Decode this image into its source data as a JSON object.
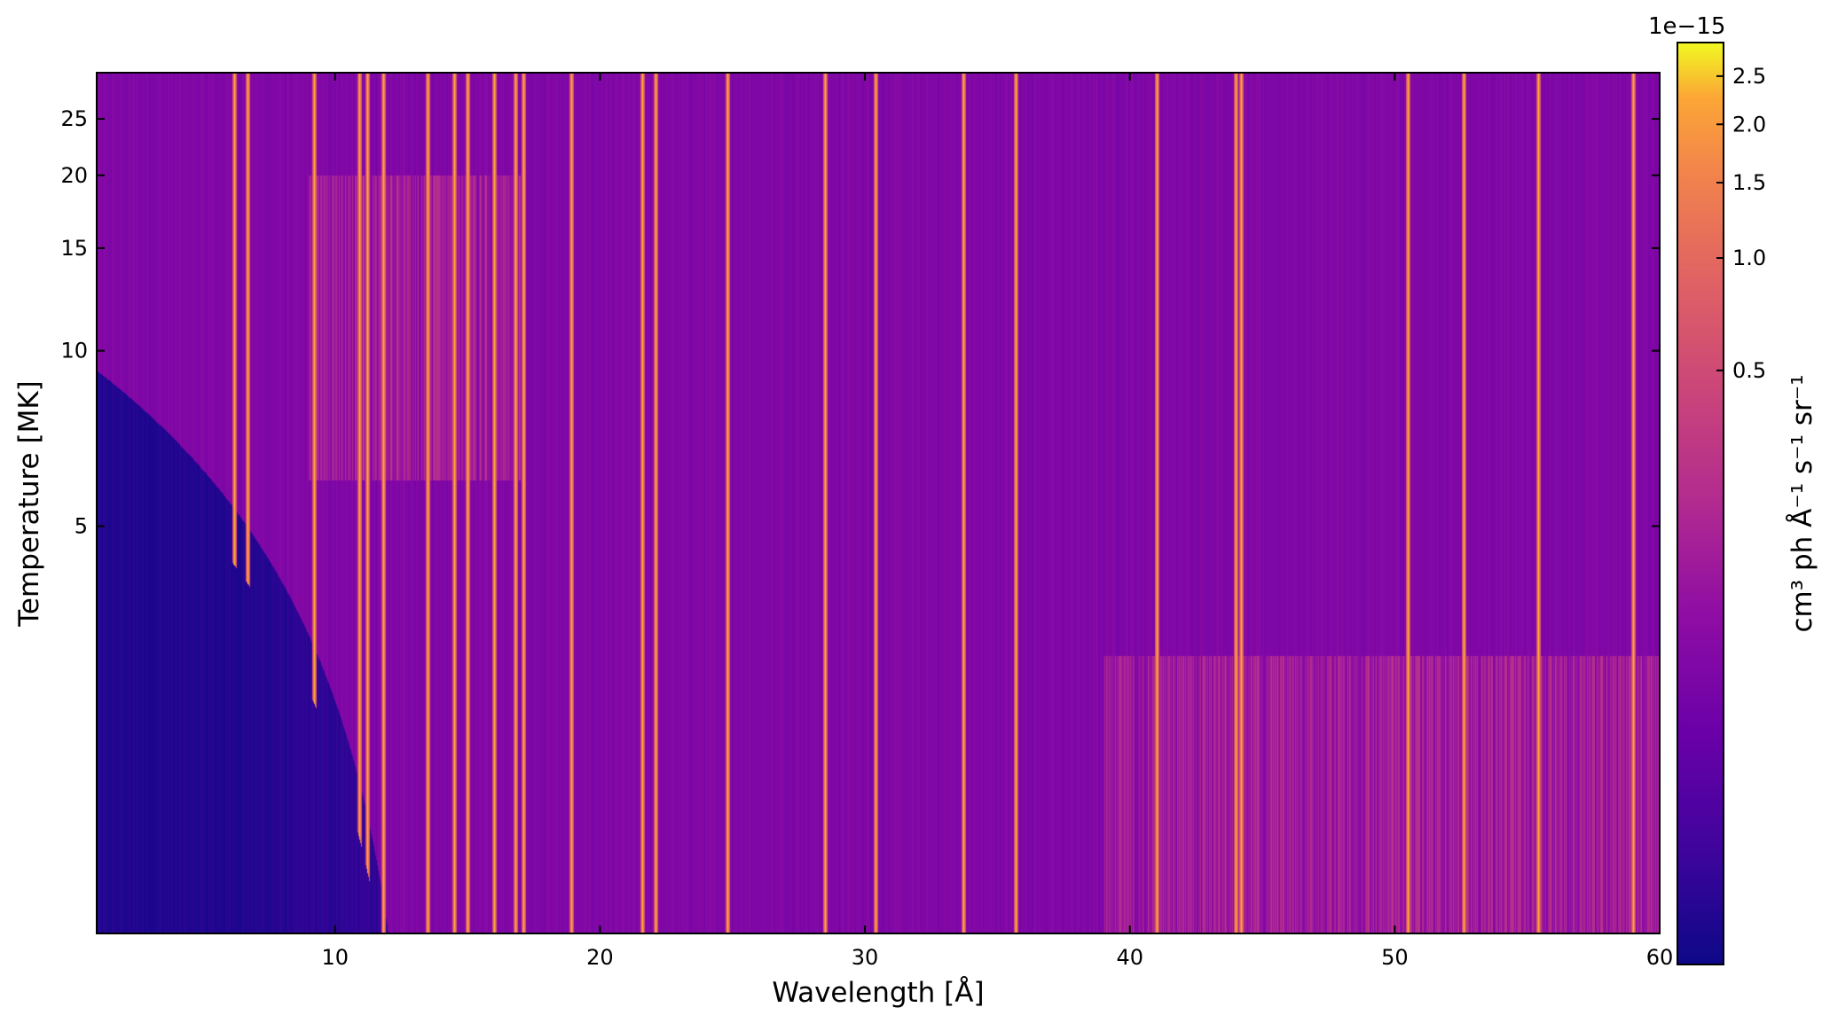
{
  "chart_data": {
    "type": "heatmap",
    "title": "",
    "xlabel": "Wavelength [Å]",
    "ylabel": "Temperature [MK]",
    "xlim": [
      1,
      60
    ],
    "ylim": [
      1,
      30
    ],
    "yscale": "log",
    "x_ticks": [
      "10",
      "20",
      "30",
      "40",
      "50",
      "60"
    ],
    "y_ticks": [
      "5",
      "10",
      "15",
      "20",
      "25"
    ],
    "grid": false,
    "colormap": "plasma",
    "colorbar": {
      "label": "cm³ ph Å⁻¹ s⁻¹ sr⁻¹",
      "scale": "power-law",
      "offset_text": "1e−15",
      "ticks": [
        "0.5",
        "1.0",
        "1.5",
        "2.0",
        "2.5"
      ],
      "max": 2.9
    },
    "emission_lines_angstrom": [
      6.2,
      6.7,
      9.2,
      10.9,
      11.2,
      11.8,
      13.5,
      14.5,
      15.0,
      16.0,
      16.8,
      17.1,
      18.9,
      21.6,
      22.1,
      24.8,
      28.5,
      30.4,
      33.7,
      35.7,
      41.0,
      44.0,
      44.2,
      50.5,
      52.6,
      55.4,
      59.0
    ],
    "bright_regions": [
      {
        "wavelength_range": [
          9,
          17
        ],
        "temperature_range_mk": [
          6,
          20
        ]
      },
      {
        "wavelength_range": [
          39,
          60
        ],
        "temperature_range_mk": [
          1,
          3
        ]
      }
    ]
  }
}
